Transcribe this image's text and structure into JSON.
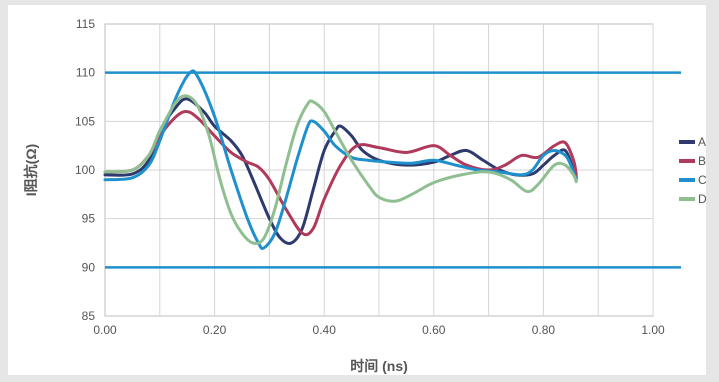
{
  "chart_data": {
    "type": "line",
    "title": "",
    "xlabel": "时间 (ns)",
    "ylabel": "I阻抗(Ω)",
    "xlim": [
      0,
      1.0
    ],
    "ylim": [
      85,
      115
    ],
    "x_ticks": [
      "0.00",
      "0.20",
      "0.40",
      "0.60",
      "0.80",
      "1.00"
    ],
    "x_tick_values": [
      0,
      0.2,
      0.4,
      0.6,
      0.8,
      1.0
    ],
    "y_ticks": [
      "85",
      "90",
      "95",
      "100",
      "105",
      "110",
      "115"
    ],
    "y_tick_values": [
      85,
      90,
      95,
      100,
      105,
      110,
      115
    ],
    "grid": true,
    "legend": "right",
    "limit_lines": [
      {
        "y": 110,
        "color": "#1f90cc"
      },
      {
        "y": 90,
        "color": "#1f90cc"
      }
    ],
    "series": [
      {
        "name": "A",
        "color": "#2e3a6e",
        "points": [
          [
            0,
            99.5
          ],
          [
            0.05,
            99.6
          ],
          [
            0.08,
            101
          ],
          [
            0.1,
            104
          ],
          [
            0.13,
            106.5
          ],
          [
            0.15,
            107.3
          ],
          [
            0.18,
            106
          ],
          [
            0.2,
            104.5
          ],
          [
            0.23,
            103
          ],
          [
            0.25,
            101.5
          ],
          [
            0.27,
            99
          ],
          [
            0.3,
            95
          ],
          [
            0.32,
            93
          ],
          [
            0.34,
            92.5
          ],
          [
            0.36,
            94
          ],
          [
            0.38,
            98
          ],
          [
            0.4,
            102
          ],
          [
            0.42,
            104
          ],
          [
            0.43,
            104.5
          ],
          [
            0.45,
            103.5
          ],
          [
            0.47,
            102
          ],
          [
            0.5,
            101
          ],
          [
            0.55,
            100.5
          ],
          [
            0.6,
            100.8
          ],
          [
            0.63,
            101.5
          ],
          [
            0.66,
            102
          ],
          [
            0.69,
            101
          ],
          [
            0.72,
            100
          ],
          [
            0.75,
            99.5
          ],
          [
            0.78,
            99.6
          ],
          [
            0.8,
            100.5
          ],
          [
            0.82,
            101.5
          ],
          [
            0.84,
            102
          ],
          [
            0.855,
            100
          ],
          [
            0.86,
            99.2
          ]
        ]
      },
      {
        "name": "B",
        "color": "#b03a5b",
        "points": [
          [
            0,
            99.8
          ],
          [
            0.05,
            100
          ],
          [
            0.08,
            101.5
          ],
          [
            0.1,
            103.5
          ],
          [
            0.13,
            105.5
          ],
          [
            0.15,
            106
          ],
          [
            0.17,
            105.3
          ],
          [
            0.2,
            103.5
          ],
          [
            0.23,
            101.8
          ],
          [
            0.26,
            100.8
          ],
          [
            0.28,
            100.3
          ],
          [
            0.3,
            99
          ],
          [
            0.33,
            96
          ],
          [
            0.36,
            93.5
          ],
          [
            0.38,
            94
          ],
          [
            0.4,
            97
          ],
          [
            0.43,
            100.5
          ],
          [
            0.46,
            102.5
          ],
          [
            0.5,
            102.3
          ],
          [
            0.55,
            101.8
          ],
          [
            0.6,
            102.5
          ],
          [
            0.63,
            101.5
          ],
          [
            0.66,
            100.5
          ],
          [
            0.7,
            100
          ],
          [
            0.73,
            100.5
          ],
          [
            0.76,
            101.5
          ],
          [
            0.79,
            101.3
          ],
          [
            0.82,
            102.5
          ],
          [
            0.84,
            102.8
          ],
          [
            0.855,
            101
          ],
          [
            0.86,
            99.5
          ]
        ]
      },
      {
        "name": "C",
        "color": "#1f90cc",
        "points": [
          [
            0,
            99
          ],
          [
            0.05,
            99.2
          ],
          [
            0.08,
            100.5
          ],
          [
            0.1,
            103
          ],
          [
            0.13,
            107.5
          ],
          [
            0.155,
            110
          ],
          [
            0.17,
            109.5
          ],
          [
            0.2,
            105.5
          ],
          [
            0.23,
            100
          ],
          [
            0.26,
            95
          ],
          [
            0.28,
            92.5
          ],
          [
            0.29,
            92
          ],
          [
            0.31,
            93.5
          ],
          [
            0.33,
            97
          ],
          [
            0.35,
            101
          ],
          [
            0.37,
            104.5
          ],
          [
            0.38,
            105
          ],
          [
            0.4,
            104
          ],
          [
            0.42,
            102.5
          ],
          [
            0.45,
            101.3
          ],
          [
            0.48,
            101
          ],
          [
            0.52,
            100.8
          ],
          [
            0.56,
            100.7
          ],
          [
            0.6,
            101
          ],
          [
            0.64,
            100.5
          ],
          [
            0.68,
            100
          ],
          [
            0.72,
            99.8
          ],
          [
            0.76,
            99.5
          ],
          [
            0.78,
            100
          ],
          [
            0.8,
            101.5
          ],
          [
            0.82,
            102
          ],
          [
            0.84,
            101.5
          ],
          [
            0.85,
            100.5
          ],
          [
            0.86,
            99
          ]
        ]
      },
      {
        "name": "D",
        "color": "#8fbf91",
        "points": [
          [
            0,
            99.8
          ],
          [
            0.05,
            100
          ],
          [
            0.08,
            101.5
          ],
          [
            0.1,
            104
          ],
          [
            0.13,
            107
          ],
          [
            0.15,
            107.6
          ],
          [
            0.17,
            106.5
          ],
          [
            0.19,
            103.5
          ],
          [
            0.21,
            99
          ],
          [
            0.23,
            95.5
          ],
          [
            0.25,
            93.5
          ],
          [
            0.27,
            92.5
          ],
          [
            0.29,
            93
          ],
          [
            0.31,
            96
          ],
          [
            0.33,
            100.5
          ],
          [
            0.35,
            104.5
          ],
          [
            0.37,
            106.8
          ],
          [
            0.38,
            107
          ],
          [
            0.4,
            106
          ],
          [
            0.42,
            104
          ],
          [
            0.45,
            101
          ],
          [
            0.48,
            98.5
          ],
          [
            0.5,
            97.2
          ],
          [
            0.53,
            96.8
          ],
          [
            0.56,
            97.5
          ],
          [
            0.6,
            98.7
          ],
          [
            0.65,
            99.5
          ],
          [
            0.7,
            99.8
          ],
          [
            0.74,
            99
          ],
          [
            0.77,
            97.8
          ],
          [
            0.79,
            98.5
          ],
          [
            0.82,
            100.5
          ],
          [
            0.84,
            100.5
          ],
          [
            0.855,
            99.5
          ],
          [
            0.86,
            98.8
          ]
        ]
      }
    ]
  }
}
